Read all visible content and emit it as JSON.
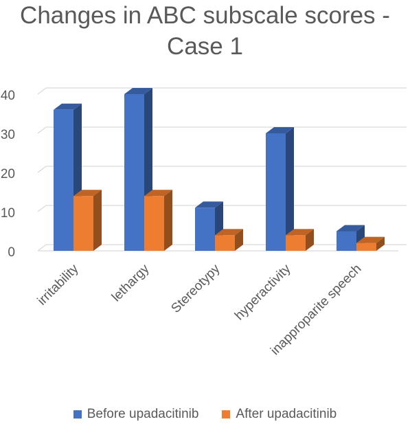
{
  "chart_data": {
    "type": "bar",
    "title_lines": [
      "Changes in ABC subscale scores -",
      "Case 1"
    ],
    "categories": [
      "irritability",
      "lethargy",
      "Stereotypy",
      "hyperactivity",
      "inapproparite speech"
    ],
    "series": [
      {
        "name": "Before upadacitinib",
        "values": [
          36,
          40,
          11,
          30,
          5
        ],
        "color": "#4472C4"
      },
      {
        "name": "After upadacitinib",
        "values": [
          14,
          14,
          4,
          4,
          2
        ],
        "color": "#ED7D31"
      }
    ],
    "y_ticks": [
      0,
      10,
      20,
      30,
      40
    ],
    "ylim": [
      0,
      40
    ],
    "grid": true,
    "legend": "bottom"
  }
}
